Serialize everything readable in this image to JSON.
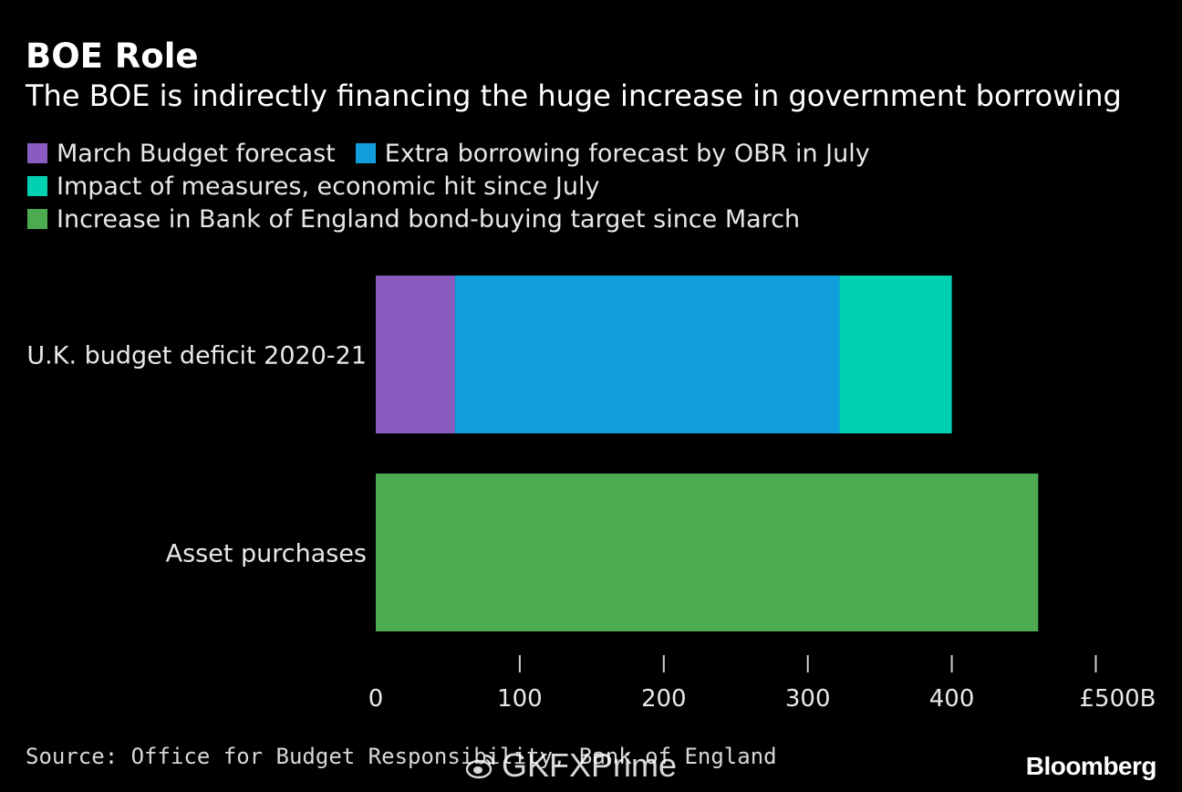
{
  "header": {
    "title": "BOE Role",
    "subtitle": "The BOE is indirectly financing the huge increase in government borrowing"
  },
  "legend": [
    {
      "label": "March Budget forecast",
      "color": "#8a5cbf"
    },
    {
      "label": "Extra borrowing forecast by OBR in July",
      "color": "#119fdc"
    },
    {
      "label": "Impact of measures, economic hit since July",
      "color": "#00d1b2"
    },
    {
      "label": "Increase in Bank of England bond-buying target since March",
      "color": "#4caa50"
    }
  ],
  "footer": {
    "source": "Source: Office for Budget Responsibility, Bank of England",
    "brand": "Bloomberg",
    "watermark": "GKFXPrime"
  },
  "chart_data": {
    "type": "bar",
    "orientation": "horizontal",
    "stacked": true,
    "categories": [
      "U.K. budget deficit 2020-21",
      "Asset purchases"
    ],
    "series": [
      {
        "name": "March Budget forecast",
        "color": "#8a5cbf",
        "values": [
          55,
          0
        ]
      },
      {
        "name": "Extra borrowing forecast by OBR in July",
        "color": "#119fdc",
        "values": [
          267,
          0
        ]
      },
      {
        "name": "Impact of measures, economic hit since July",
        "color": "#00d1b2",
        "values": [
          78,
          0
        ]
      },
      {
        "name": "Increase in Bank of England bond-buying target since March",
        "color": "#4caa50",
        "values": [
          0,
          460
        ]
      }
    ],
    "xlim": [
      0,
      500
    ],
    "ticks": [
      {
        "value": 0,
        "label": "0"
      },
      {
        "value": 100,
        "label": "100"
      },
      {
        "value": 200,
        "label": "200"
      },
      {
        "value": 300,
        "label": "300"
      },
      {
        "value": 400,
        "label": "400"
      },
      {
        "value": 500,
        "label": "£500B"
      }
    ],
    "grid": false,
    "legend_position": "top-left"
  }
}
